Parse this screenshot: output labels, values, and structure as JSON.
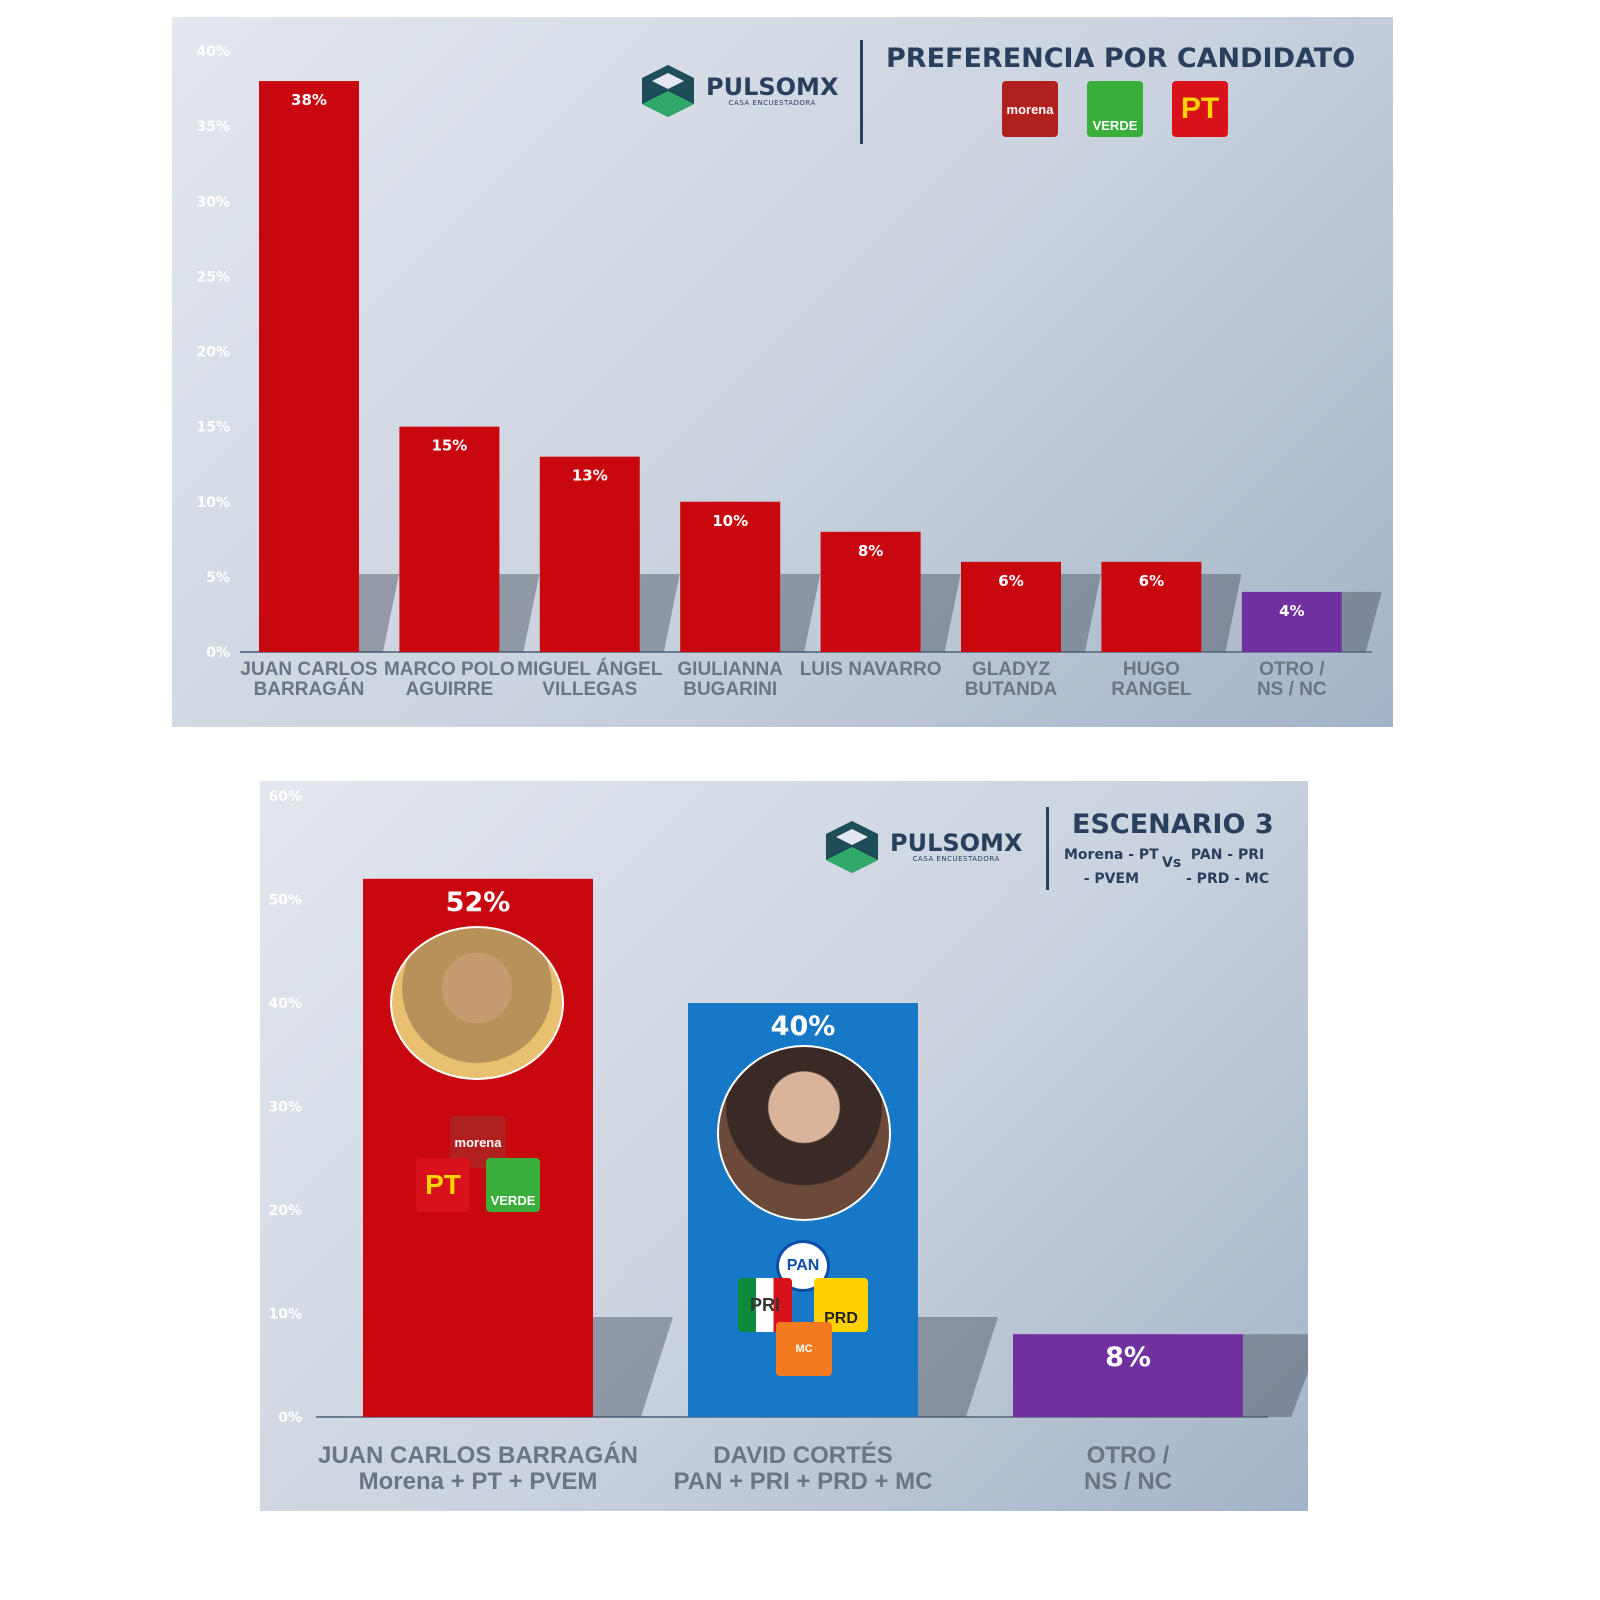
{
  "brand": {
    "name": "PULSOMX",
    "tagline": "CASA ENCUESTADORA"
  },
  "colors": {
    "red": "#c8070e",
    "blue": "#1878c8",
    "purple": "#7030a0",
    "navy": "#2a3e5e",
    "green": "#2fa86a",
    "axis": "#6b7a8c"
  },
  "chart1": {
    "header": {
      "title": "PREFERENCIA POR CANDIDATO",
      "party_logos": [
        "morena",
        "VERDE",
        "PT"
      ]
    }
  },
  "chart2": {
    "header": {
      "title": "ESCENARIO 3",
      "left_coalition_1": "Morena - PT",
      "left_coalition_2": "- PVEM",
      "vs": "Vs",
      "right_coalition_1": "PAN - PRI",
      "right_coalition_2": "- PRD - MC"
    },
    "logos_bar1": [
      "morena",
      "PT",
      "VERDE"
    ],
    "logos_bar2": [
      "PAN",
      "PRI",
      "PRD",
      "MC"
    ]
  },
  "chart_data": [
    {
      "type": "bar",
      "title": "PREFERENCIA POR CANDIDATO",
      "categories": [
        [
          "JUAN CARLOS",
          "BARRAGÁN"
        ],
        [
          "MARCO POLO",
          "AGUIRRE"
        ],
        [
          "MIGUEL ÁNGEL",
          "VILLEGAS"
        ],
        [
          "GIULIANNA",
          "BUGARINI"
        ],
        [
          "LUIS NAVARRO"
        ],
        [
          "GLADYZ",
          "BUTANDA"
        ],
        [
          "HUGO",
          "RANGEL"
        ],
        [
          "OTRO /",
          "NS / NC"
        ]
      ],
      "values": [
        38,
        15,
        13,
        10,
        8,
        6,
        6,
        4
      ],
      "data_labels": [
        "38%",
        "15%",
        "13%",
        "10%",
        "8%",
        "6%",
        "6%",
        "4%"
      ],
      "bar_colors": [
        "#c8070e",
        "#c8070e",
        "#c8070e",
        "#c8070e",
        "#c8070e",
        "#c8070e",
        "#c8070e",
        "#7030a0"
      ],
      "ylim": [
        0,
        40
      ],
      "yticks": [
        "0%",
        "5%",
        "10%",
        "15%",
        "20%",
        "25%",
        "30%",
        "35%",
        "40%"
      ],
      "grid": false
    },
    {
      "type": "bar",
      "title": "ESCENARIO 3",
      "categories": [
        [
          "JUAN CARLOS BARRAGÁN",
          "Morena + PT + PVEM"
        ],
        [
          "DAVID CORTÉS",
          "PAN + PRI + PRD + MC"
        ],
        [
          "OTRO /",
          "NS / NC"
        ]
      ],
      "values": [
        52,
        40,
        8
      ],
      "data_labels": [
        "52%",
        "40%",
        "8%"
      ],
      "bar_colors": [
        "#c8070e",
        "#1878c8",
        "#7030a0"
      ],
      "ylim": [
        0,
        60
      ],
      "yticks": [
        "0%",
        "10%",
        "20%",
        "30%",
        "40%",
        "50%",
        "60%"
      ],
      "grid": false
    }
  ]
}
